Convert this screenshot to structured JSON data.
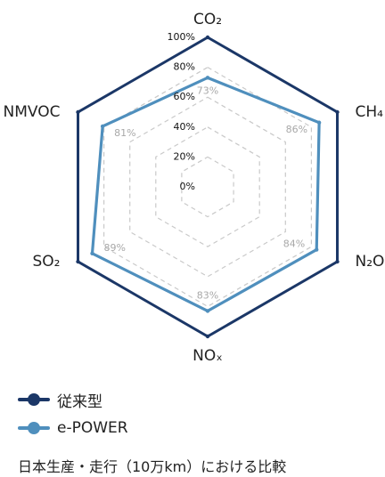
{
  "chart_data": {
    "type": "radar",
    "axes": [
      "CO₂",
      "CH₄",
      "N₂O",
      "NOₓ",
      "SO₂",
      "NMVOC"
    ],
    "ticks": [
      "0%",
      "20%",
      "40%",
      "60%",
      "80%",
      "100%"
    ],
    "range": [
      0,
      100
    ],
    "series": [
      {
        "name": "従来型",
        "values": [
          100,
          100,
          100,
          100,
          100,
          100
        ],
        "color": "#1b3767"
      },
      {
        "name": "e-POWER",
        "values": [
          73,
          86,
          84,
          83,
          89,
          81
        ],
        "color": "#4f8fbd"
      }
    ],
    "value_labels": [
      "73%",
      "86%",
      "84%",
      "83%",
      "89%",
      "81%"
    ],
    "grid_color": "#c9c9c9"
  },
  "caption": "日本生産・走行（10万km）における比較"
}
